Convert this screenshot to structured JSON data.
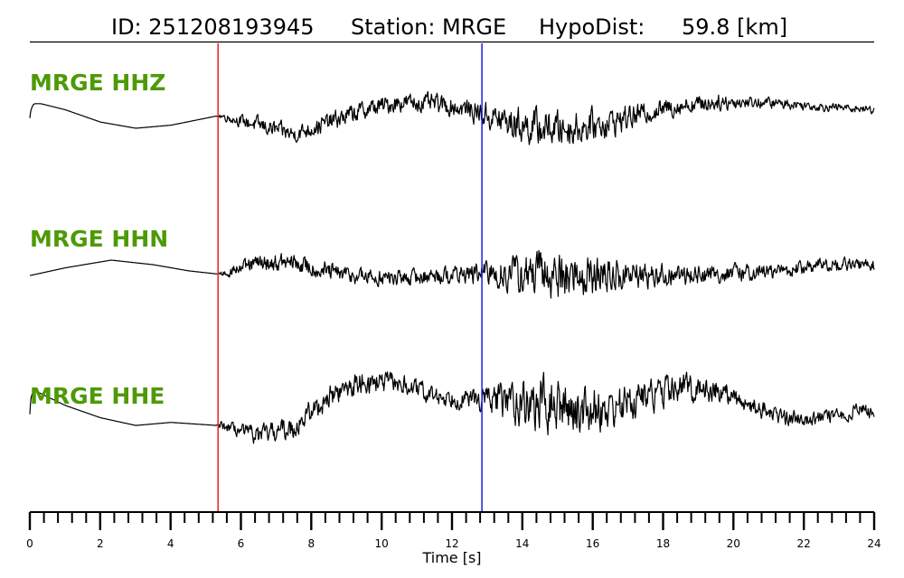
{
  "header": {
    "event_id": "ID: 251208193945",
    "station": "Station: MRGE",
    "hypodist_label": "HypoDist:",
    "hypodist_value": "59.8 [km]"
  },
  "colors": {
    "label": "#4e9a06",
    "trace": "#000000",
    "p_pick": "#e8202a",
    "s_pick": "#1f1fe0"
  },
  "chart_data": {
    "type": "line",
    "title": "ID: 251208193945   Station: MRGE   HypoDist:    59.8 [km]",
    "xlabel": "Time [s]",
    "ylabel": "",
    "xlim": [
      0,
      24
    ],
    "x_ticks": [
      0,
      2,
      4,
      6,
      8,
      10,
      12,
      14,
      16,
      18,
      20,
      22,
      24
    ],
    "x_tick_labels": [
      "0",
      "2",
      "4",
      "6",
      "8",
      "10",
      "12",
      "14",
      "16",
      "18",
      "20",
      "22",
      "24"
    ],
    "minor_tick_step": 0.4,
    "grid": false,
    "picks": [
      {
        "phase": "P",
        "time": 5.35,
        "color": "#e8202a"
      },
      {
        "phase": "S",
        "time": 12.85,
        "color": "#1f1fe0"
      }
    ],
    "series": [
      {
        "name": "MRGE HHZ",
        "envelope": [
          [
            0.0,
            0.6,
            0.0
          ],
          [
            0.1,
            0.8,
            0.0
          ],
          [
            0.3,
            0.8,
            0.0
          ],
          [
            1.0,
            0.6,
            0.0
          ],
          [
            2.0,
            0.2,
            0.0
          ],
          [
            3.0,
            0.0,
            0.0
          ],
          [
            4.0,
            0.1,
            0.0
          ],
          [
            5.3,
            0.4,
            0.0
          ],
          [
            5.4,
            0.4,
            0.15
          ],
          [
            6.5,
            0.1,
            0.4
          ],
          [
            7.5,
            -0.2,
            0.4
          ],
          [
            8.5,
            0.2,
            0.45
          ],
          [
            9.5,
            0.6,
            0.45
          ],
          [
            10.5,
            0.85,
            0.45
          ],
          [
            11.5,
            0.8,
            0.45
          ],
          [
            12.5,
            0.6,
            0.5
          ],
          [
            13.5,
            0.2,
            0.8
          ],
          [
            14.5,
            0.0,
            0.9
          ],
          [
            15.5,
            0.0,
            0.8
          ],
          [
            16.5,
            0.2,
            0.7
          ],
          [
            17.5,
            0.5,
            0.5
          ],
          [
            18.5,
            0.75,
            0.45
          ],
          [
            19.5,
            0.85,
            0.4
          ],
          [
            20.5,
            0.85,
            0.3
          ],
          [
            21.5,
            0.8,
            0.25
          ],
          [
            22.5,
            0.7,
            0.2
          ],
          [
            23.5,
            0.65,
            0.2
          ],
          [
            24.0,
            0.6,
            0.2
          ]
        ]
      },
      {
        "name": "MRGE HHN",
        "envelope": [
          [
            0.0,
            0.0,
            0.0
          ],
          [
            1.0,
            0.25,
            0.0
          ],
          [
            2.3,
            0.5,
            0.0
          ],
          [
            3.5,
            0.35,
            0.0
          ],
          [
            4.5,
            0.15,
            0.0
          ],
          [
            5.3,
            0.05,
            0.0
          ],
          [
            5.4,
            0.05,
            0.2
          ],
          [
            6.5,
            0.4,
            0.4
          ],
          [
            7.5,
            0.4,
            0.45
          ],
          [
            8.5,
            0.1,
            0.45
          ],
          [
            9.5,
            -0.05,
            0.4
          ],
          [
            10.5,
            -0.1,
            0.4
          ],
          [
            11.5,
            0.0,
            0.4
          ],
          [
            12.5,
            0.05,
            0.45
          ],
          [
            13.5,
            0.05,
            0.8
          ],
          [
            14.5,
            0.0,
            1.2
          ],
          [
            15.5,
            0.0,
            1.1
          ],
          [
            16.5,
            0.0,
            0.9
          ],
          [
            17.5,
            0.0,
            0.6
          ],
          [
            18.5,
            0.0,
            0.5
          ],
          [
            19.5,
            0.05,
            0.45
          ],
          [
            20.5,
            0.1,
            0.4
          ],
          [
            21.5,
            0.15,
            0.35
          ],
          [
            22.5,
            0.35,
            0.35
          ],
          [
            23.5,
            0.35,
            0.3
          ],
          [
            24.0,
            0.35,
            0.3
          ]
        ]
      },
      {
        "name": "MRGE HHE",
        "envelope": [
          [
            0.0,
            1.3,
            0.0
          ],
          [
            0.1,
            1.5,
            0.0
          ],
          [
            1.0,
            1.0,
            0.0
          ],
          [
            2.0,
            0.6,
            0.0
          ],
          [
            3.0,
            0.35,
            0.0
          ],
          [
            4.0,
            0.45,
            0.0
          ],
          [
            5.3,
            0.35,
            0.0
          ],
          [
            5.4,
            0.35,
            0.2
          ],
          [
            6.5,
            0.0,
            0.45
          ],
          [
            7.5,
            0.3,
            0.55
          ],
          [
            8.5,
            1.3,
            0.55
          ],
          [
            9.5,
            1.8,
            0.55
          ],
          [
            10.5,
            1.7,
            0.5
          ],
          [
            11.5,
            1.3,
            0.45
          ],
          [
            12.5,
            1.2,
            0.45
          ],
          [
            13.5,
            1.2,
            0.9
          ],
          [
            14.5,
            1.0,
            1.3
          ],
          [
            15.5,
            0.9,
            1.2
          ],
          [
            16.5,
            0.9,
            1.0
          ],
          [
            17.5,
            1.3,
            0.8
          ],
          [
            18.5,
            1.6,
            0.7
          ],
          [
            19.5,
            1.5,
            0.6
          ],
          [
            20.5,
            1.0,
            0.45
          ],
          [
            21.5,
            0.6,
            0.4
          ],
          [
            22.5,
            0.6,
            0.35
          ],
          [
            23.3,
            0.7,
            0.3
          ],
          [
            23.6,
            1.0,
            0.35
          ],
          [
            24.0,
            0.6,
            0.3
          ]
        ]
      }
    ]
  }
}
